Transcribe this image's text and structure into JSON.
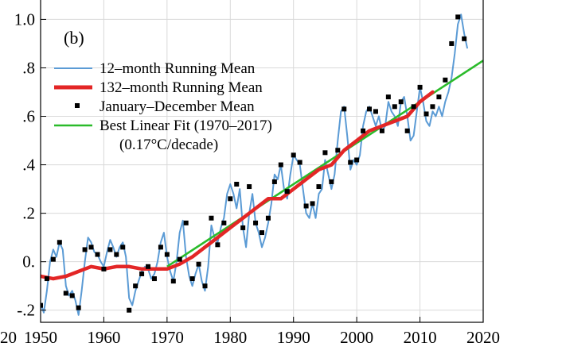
{
  "chart_data": {
    "type": "line",
    "panel_label": "(b)",
    "xlabel": "",
    "ylabel": "",
    "xlim": [
      1950,
      2020
    ],
    "ylim": [
      -0.25,
      1.08
    ],
    "x_ticks": [
      1950,
      1960,
      1970,
      1980,
      1990,
      2000,
      2010,
      2020
    ],
    "x_tick_labels": [
      "1950",
      "1960",
      "1970",
      "1980",
      "1990",
      "2000",
      "2010",
      "2020"
    ],
    "clipped_left_tick_label": "20",
    "y_ticks": [
      -0.2,
      0.0,
      0.2,
      0.4,
      0.6,
      0.8,
      1.0
    ],
    "y_tick_labels": [
      "-.2",
      "0.",
      ".2",
      ".4",
      ".6",
      ".8",
      "1.0"
    ],
    "grid": true,
    "legend_position": "top-left",
    "legend": [
      {
        "label": "12–month Running Mean",
        "color": "#5b9bd5",
        "kind": "line"
      },
      {
        "label": "132–month Running Mean",
        "color": "#e32626",
        "kind": "thick-line"
      },
      {
        "label": "January–December Mean",
        "color": "#000000",
        "kind": "marker"
      },
      {
        "label": "Best Linear Fit (1970–2017)",
        "color": "#2bbb2b",
        "kind": "line"
      }
    ],
    "legend_note": "(0.17°C/decade)",
    "series": [
      {
        "name": "12–month Running Mean",
        "color": "#5b9bd5",
        "x": [
          1950.0,
          1950.5,
          1951.0,
          1951.5,
          1952.0,
          1952.5,
          1953.0,
          1953.5,
          1954.0,
          1954.5,
          1955.0,
          1955.5,
          1956.0,
          1956.5,
          1957.0,
          1957.5,
          1958.0,
          1958.5,
          1959.0,
          1959.5,
          1960.0,
          1960.5,
          1961.0,
          1961.5,
          1962.0,
          1962.5,
          1963.0,
          1963.5,
          1964.0,
          1964.5,
          1965.0,
          1965.5,
          1966.0,
          1966.5,
          1967.0,
          1967.5,
          1968.0,
          1968.5,
          1969.0,
          1969.5,
          1970.0,
          1970.5,
          1971.0,
          1971.5,
          1972.0,
          1972.5,
          1973.0,
          1973.5,
          1974.0,
          1974.5,
          1975.0,
          1975.5,
          1976.0,
          1976.5,
          1977.0,
          1977.5,
          1978.0,
          1978.5,
          1979.0,
          1979.5,
          1980.0,
          1980.5,
          1981.0,
          1981.5,
          1982.0,
          1982.5,
          1983.0,
          1983.5,
          1984.0,
          1984.5,
          1985.0,
          1985.5,
          1986.0,
          1986.5,
          1987.0,
          1987.5,
          1988.0,
          1988.5,
          1989.0,
          1989.5,
          1990.0,
          1990.5,
          1991.0,
          1991.5,
          1992.0,
          1992.5,
          1993.0,
          1993.5,
          1994.0,
          1994.5,
          1995.0,
          1995.5,
          1996.0,
          1996.5,
          1997.0,
          1997.5,
          1998.0,
          1998.5,
          1999.0,
          1999.5,
          2000.0,
          2000.5,
          2001.0,
          2001.5,
          2002.0,
          2002.5,
          2003.0,
          2003.5,
          2004.0,
          2004.5,
          2005.0,
          2005.5,
          2006.0,
          2006.5,
          2007.0,
          2007.5,
          2008.0,
          2008.5,
          2009.0,
          2009.5,
          2010.0,
          2010.5,
          2011.0,
          2011.5,
          2012.0,
          2012.5,
          2013.0,
          2013.5,
          2014.0,
          2014.5,
          2015.0,
          2015.5,
          2016.0,
          2016.5,
          2017.0,
          2017.5
        ],
        "y": [
          -0.17,
          -0.21,
          -0.12,
          0.0,
          0.05,
          0.02,
          0.08,
          0.05,
          -0.1,
          -0.14,
          -0.12,
          -0.16,
          -0.22,
          -0.12,
          0.0,
          0.1,
          0.08,
          0.04,
          0.03,
          0.0,
          -0.02,
          0.04,
          0.09,
          0.06,
          0.02,
          0.06,
          0.08,
          0.02,
          -0.15,
          -0.18,
          -0.12,
          -0.08,
          -0.04,
          -0.02,
          -0.03,
          -0.07,
          -0.05,
          0.0,
          0.08,
          0.12,
          0.02,
          -0.04,
          -0.08,
          0.0,
          0.12,
          0.17,
          0.02,
          -0.06,
          -0.1,
          -0.05,
          -0.01,
          -0.08,
          -0.12,
          -0.02,
          0.15,
          0.1,
          0.08,
          0.14,
          0.18,
          0.28,
          0.32,
          0.28,
          0.22,
          0.3,
          0.14,
          0.06,
          0.2,
          0.28,
          0.16,
          0.12,
          0.06,
          0.1,
          0.16,
          0.24,
          0.36,
          0.34,
          0.4,
          0.3,
          0.26,
          0.36,
          0.44,
          0.42,
          0.4,
          0.3,
          0.2,
          0.18,
          0.24,
          0.18,
          0.28,
          0.3,
          0.42,
          0.36,
          0.3,
          0.36,
          0.5,
          0.62,
          0.64,
          0.52,
          0.38,
          0.42,
          0.4,
          0.44,
          0.56,
          0.62,
          0.64,
          0.6,
          0.56,
          0.6,
          0.54,
          0.56,
          0.66,
          0.62,
          0.6,
          0.56,
          0.66,
          0.68,
          0.6,
          0.5,
          0.52,
          0.62,
          0.72,
          0.66,
          0.58,
          0.56,
          0.62,
          0.6,
          0.64,
          0.6,
          0.66,
          0.7,
          0.76,
          0.86,
          0.98,
          1.02,
          0.94,
          0.88
        ]
      },
      {
        "name": "132–month Running Mean",
        "color": "#e32626",
        "x": [
          1950,
          1952,
          1954,
          1956,
          1958,
          1960,
          1962,
          1964,
          1966,
          1968,
          1970,
          1972,
          1974,
          1976,
          1978,
          1980,
          1982,
          1984,
          1986,
          1988,
          1990,
          1992,
          1994,
          1996,
          1998,
          2000,
          2002,
          2004,
          2006,
          2008,
          2010,
          2012
        ],
        "y": [
          -0.06,
          -0.07,
          -0.06,
          -0.04,
          -0.02,
          -0.03,
          -0.02,
          -0.02,
          -0.03,
          -0.03,
          -0.03,
          -0.01,
          0.02,
          0.06,
          0.1,
          0.14,
          0.18,
          0.22,
          0.26,
          0.26,
          0.3,
          0.34,
          0.38,
          0.4,
          0.46,
          0.5,
          0.54,
          0.56,
          0.58,
          0.6,
          0.66,
          0.7
        ]
      },
      {
        "name": "January–December Mean",
        "color": "#000000",
        "x": [
          1950,
          1951,
          1952,
          1953,
          1954,
          1955,
          1956,
          1957,
          1958,
          1959,
          1960,
          1961,
          1962,
          1963,
          1964,
          1965,
          1966,
          1967,
          1968,
          1969,
          1970,
          1971,
          1972,
          1973,
          1974,
          1975,
          1976,
          1977,
          1978,
          1979,
          1980,
          1981,
          1982,
          1983,
          1984,
          1985,
          1986,
          1987,
          1988,
          1989,
          1990,
          1991,
          1992,
          1993,
          1994,
          1995,
          1996,
          1997,
          1998,
          1999,
          2000,
          2001,
          2002,
          2003,
          2004,
          2005,
          2006,
          2007,
          2008,
          2009,
          2010,
          2011,
          2012,
          2013,
          2014,
          2015,
          2016,
          2017
        ],
        "y": [
          -0.18,
          -0.07,
          0.01,
          0.08,
          -0.13,
          -0.14,
          -0.19,
          0.05,
          0.06,
          0.03,
          -0.03,
          0.05,
          0.03,
          0.06,
          -0.2,
          -0.1,
          -0.05,
          -0.02,
          -0.07,
          0.06,
          0.03,
          -0.08,
          0.01,
          0.16,
          -0.07,
          -0.01,
          -0.1,
          0.18,
          0.07,
          0.16,
          0.26,
          0.32,
          0.14,
          0.31,
          0.16,
          0.12,
          0.18,
          0.33,
          0.4,
          0.29,
          0.44,
          0.41,
          0.23,
          0.24,
          0.31,
          0.45,
          0.33,
          0.46,
          0.63,
          0.41,
          0.42,
          0.54,
          0.63,
          0.62,
          0.54,
          0.68,
          0.64,
          0.66,
          0.54,
          0.64,
          0.72,
          0.61,
          0.64,
          0.68,
          0.75,
          0.9,
          1.01,
          0.92
        ]
      },
      {
        "name": "Best Linear Fit (1970–2017)",
        "color": "#2bbb2b",
        "x": [
          1970,
          2020
        ],
        "y": [
          -0.02,
          0.83
        ]
      }
    ]
  }
}
